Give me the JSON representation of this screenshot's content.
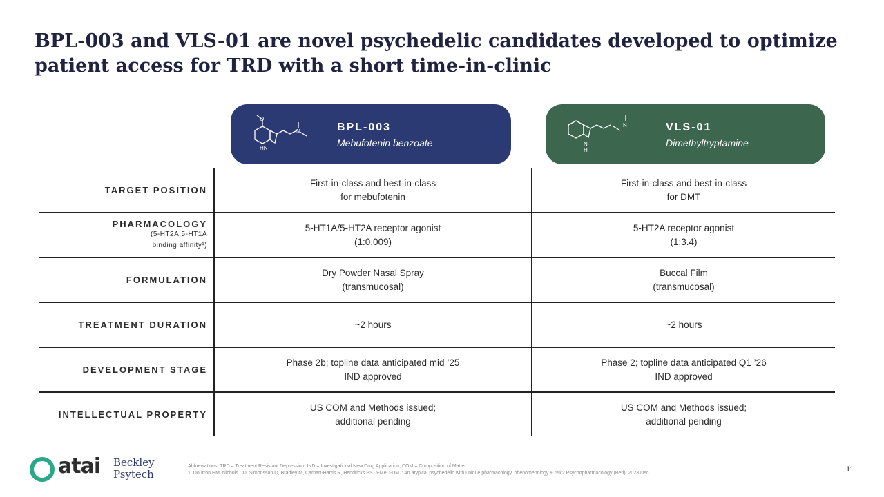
{
  "title": "BPL-003 and VLS-01 are novel psychedelic candidates developed to optimize patient access for TRD with a short time-in-clinic",
  "colors": {
    "bpl_card": "#2b3a73",
    "vls_card": "#3d664f",
    "title": "#1f2340"
  },
  "cards": [
    {
      "name": "BPL-003",
      "subtitle": "Mebufotenin benzoate",
      "structure_label": "HN"
    },
    {
      "name": "VLS-01",
      "subtitle": "Dimethyltryptamine",
      "structure_label": "H"
    }
  ],
  "rows": [
    {
      "label": "TARGET POSITION",
      "note": "",
      "bpl": [
        "First-in-class and best-in-class",
        "for mebufotenin"
      ],
      "vls": [
        "First-in-class and best-in-class",
        "for DMT"
      ]
    },
    {
      "label": "PHARMACOLOGY",
      "note": "(5-HT2A:5-HT1A binding affinity¹)",
      "bpl": [
        "5-HT1A/5-HT2A receptor agonist",
        "(1:0.009)"
      ],
      "vls": [
        "5-HT2A receptor agonist",
        "(1:3.4)"
      ]
    },
    {
      "label": "FORMULATION",
      "note": "",
      "bpl": [
        "Dry Powder Nasal Spray",
        "(transmucosal)"
      ],
      "vls": [
        "Buccal Film",
        "(transmucosal)"
      ]
    },
    {
      "label": "TREATMENT DURATION",
      "note": "",
      "bpl": [
        "~2 hours",
        ""
      ],
      "vls": [
        "~2 hours",
        ""
      ]
    },
    {
      "label": "DEVELOPMENT STAGE",
      "note": "",
      "bpl": [
        "Phase 2b; topline data anticipated mid ’25",
        "IND approved"
      ],
      "vls": [
        "Phase 2; topline data anticipated Q1 ’26",
        "IND approved"
      ]
    },
    {
      "label": "INTELLECTUAL PROPERTY",
      "note": "",
      "bpl": [
        "US COM and Methods issued;",
        "additional pending"
      ],
      "vls": [
        "US COM and Methods issued;",
        "additional pending"
      ]
    }
  ],
  "footer": {
    "logo_text": "atai",
    "partner_line1": "Beckley",
    "partner_line2": "Psytech",
    "abbreviations": "Abbreviations: TRD = Treatment Resistant Depression; IND = Investigational New Drug Application; COM = Composition of Matter",
    "reference": "1. Dourron HM, Nichols CD, Simonsson O, Bradley M, Carhart-Harris R, Hendricks PS. 5-MeO-DMT: An atypical psychedelic with unique pharmacology, phenomenology & risk? Psychopharmacology (Berl). 2023 Dec",
    "page_number": "11"
  }
}
